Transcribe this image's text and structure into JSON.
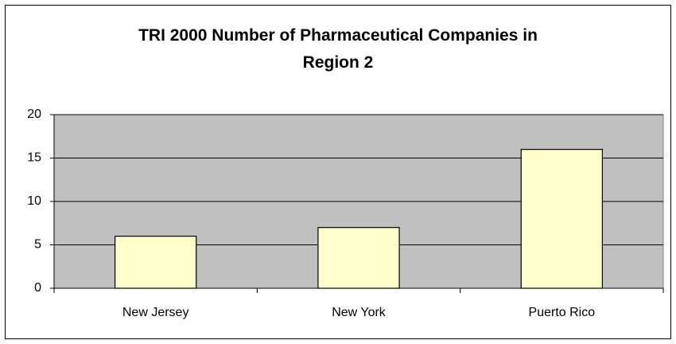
{
  "chart_data": {
    "type": "bar",
    "title": "TRI 2000 Number of Pharmaceutical Companies in Region 2",
    "categories": [
      "New Jersey",
      "New York",
      "Puerto Rico"
    ],
    "values": [
      6,
      7,
      16
    ],
    "color": "#ffffcc",
    "ylim": [
      0,
      20
    ],
    "yticks": [
      0,
      5,
      10,
      15,
      20
    ],
    "grid": true
  }
}
